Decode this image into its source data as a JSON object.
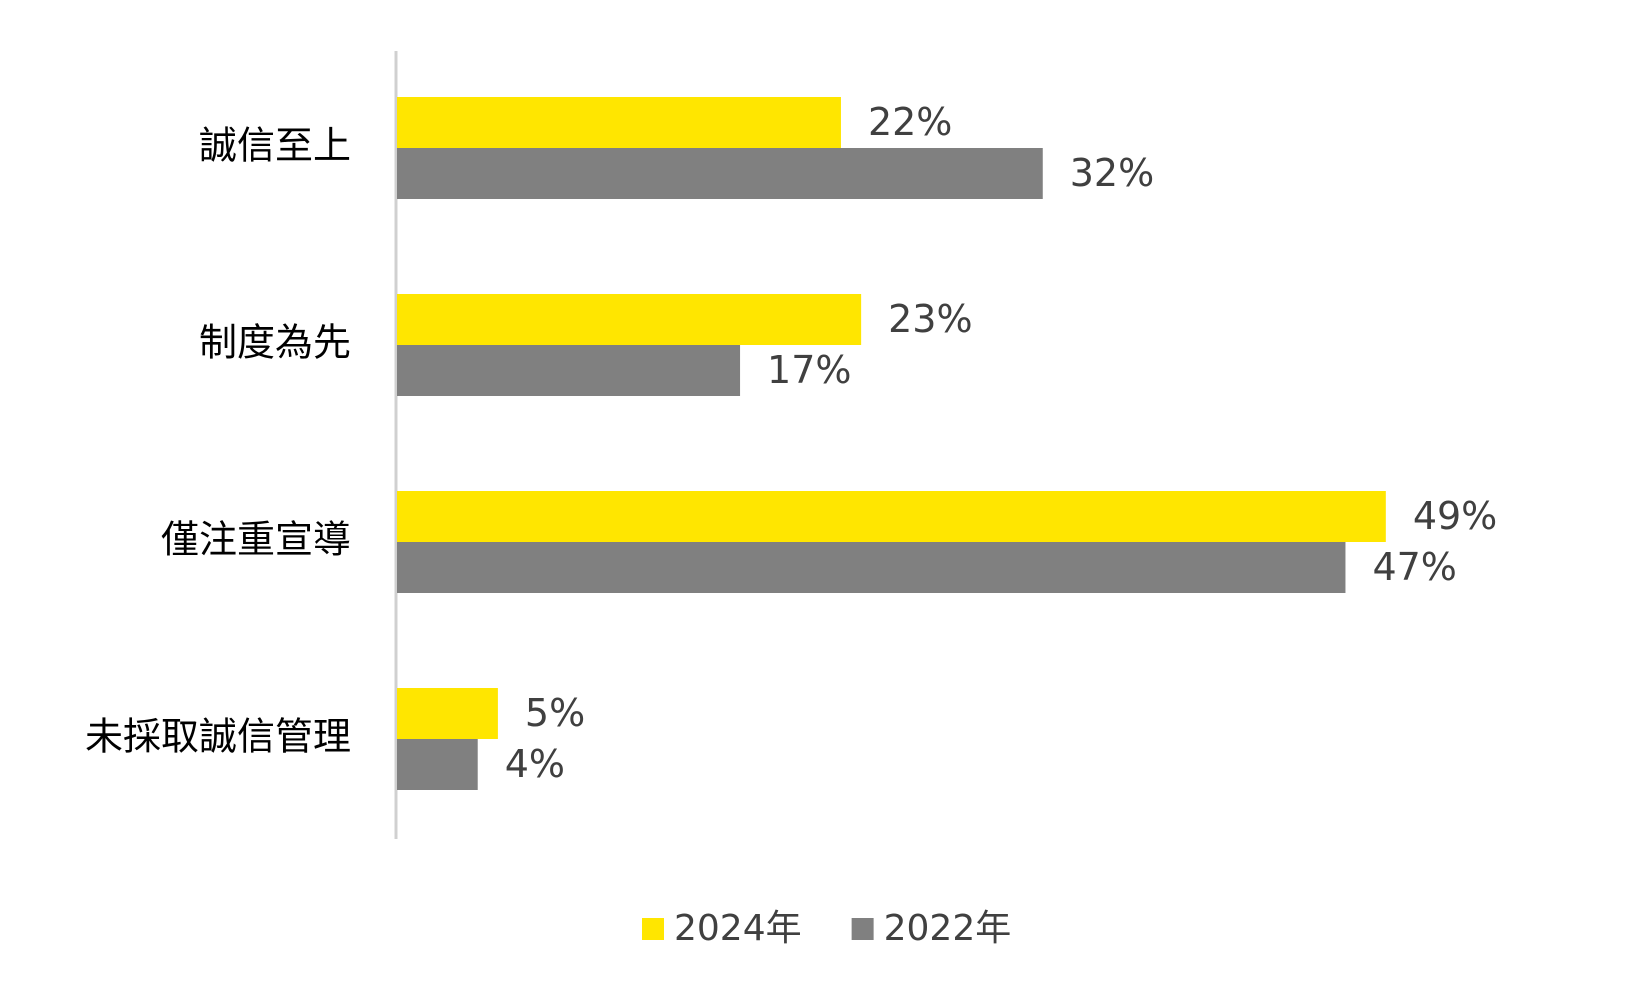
{
  "chart_data": {
    "type": "bar",
    "orientation": "horizontal",
    "categories": [
      "誠信至上",
      "制度為先",
      "僅注重宣導",
      "未採取誠信管理"
    ],
    "series": [
      {
        "name": "2024年",
        "color": "#FFE600",
        "values": [
          22,
          23,
          49,
          5
        ],
        "value_labels": [
          "22%",
          "23%",
          "49%",
          "5%"
        ]
      },
      {
        "name": "2022年",
        "color": "#808080",
        "values": [
          32,
          17,
          47,
          4
        ],
        "value_labels": [
          "32%",
          "17%",
          "47%",
          "4%"
        ]
      }
    ],
    "legend": "bottom"
  }
}
